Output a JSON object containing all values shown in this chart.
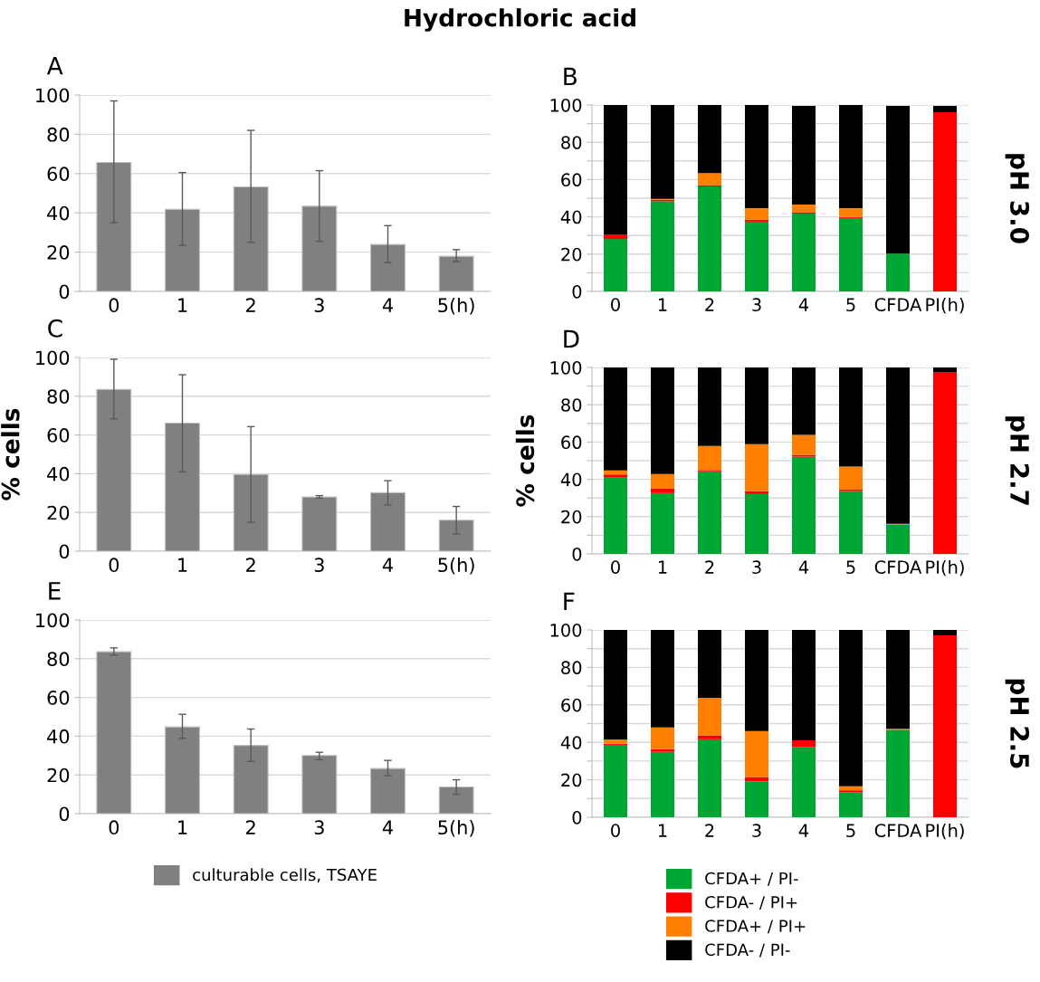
{
  "chart_data": [
    {
      "type": "bar",
      "title": "A",
      "annotations": [
        "Hydrochloric acid"
      ],
      "categories": [
        "0",
        "1",
        "2",
        "3",
        "4",
        "5(h)"
      ],
      "ylim": [
        0,
        100
      ],
      "yticks": [
        0,
        20,
        40,
        60,
        80,
        100
      ],
      "grid": "y",
      "legend": "bottom",
      "series": [
        {
          "name": "culturable cells, TSAYE",
          "color": "#808080",
          "values": [
            65.7,
            41.8,
            53.2,
            43.4,
            23.9,
            17.9
          ],
          "errors": [
            [
              35,
              97
            ],
            [
              23.5,
              60.5
            ],
            [
              25,
              82
            ],
            [
              25.5,
              61.5
            ],
            [
              14.7,
              33.5
            ],
            [
              15.3,
              21.3
            ]
          ]
        }
      ]
    },
    {
      "type": "bar",
      "title": "B",
      "y2label": "pH 3.0",
      "stacked": true,
      "categories": [
        "0",
        "1",
        "2",
        "3",
        "4",
        "5",
        "CFDA",
        "PI(h)"
      ],
      "ylim": [
        0,
        100
      ],
      "yticks": [
        0,
        {
          "value": 10,
          "label": null
        },
        20,
        {
          "value": 30,
          "label": null
        },
        40,
        {
          "value": 50,
          "label": null
        },
        60,
        {
          "value": 70,
          "label": null
        },
        80,
        {
          "value": 90,
          "label": null
        },
        100
      ],
      "grid": "y",
      "series": [
        {
          "color": "#00a633",
          "values": [
            28.1,
            48.4,
            56.3,
            37.4,
            41.7,
            39.4,
            20.3,
            0
          ]
        },
        {
          "color": "#ff0000",
          "values": [
            2.4,
            0.8,
            0.7,
            1,
            0.8,
            0.5,
            0,
            96.1
          ]
        },
        {
          "color": "#ff8000",
          "values": [
            0,
            0.4,
            6.5,
            6.2,
            4.1,
            4.7,
            0,
            0
          ]
        },
        {
          "color": "#000000",
          "values": [
            69.5,
            50.4,
            36.5,
            55.4,
            52.9,
            55.4,
            79.2,
            3.4
          ]
        }
      ]
    },
    {
      "type": "bar",
      "title": "C",
      "ylabel": "% cells",
      "categories": [
        "0",
        "1",
        "2",
        "3",
        "4",
        "5(h)"
      ],
      "ylim": [
        0,
        100
      ],
      "yticks": [
        0,
        20,
        40,
        60,
        80,
        100
      ],
      "grid": "y",
      "series": [
        {
          "color": "#808080",
          "values": [
            83.5,
            66.1,
            39.6,
            28,
            30.2,
            16
          ],
          "errors": [
            [
              68.3,
              99.1
            ],
            [
              41,
              91.1
            ],
            [
              14.9,
              64.3
            ],
            [
              27.4,
              28.7
            ],
            [
              23.9,
              36.4
            ],
            [
              8.9,
              23.1
            ]
          ]
        }
      ]
    },
    {
      "type": "bar",
      "title": "D",
      "ylabel": "% cells",
      "y2label": "pH 2.7",
      "stacked": true,
      "categories": [
        "0",
        "1",
        "2",
        "3",
        "4",
        "5",
        "CFDA",
        "PI(h)"
      ],
      "ylim": [
        0,
        100
      ],
      "yticks": [
        0,
        {
          "value": 10,
          "label": null
        },
        20,
        {
          "value": 30,
          "label": null
        },
        40,
        {
          "value": 50,
          "label": null
        },
        60,
        {
          "value": 70,
          "label": null
        },
        80,
        {
          "value": 90,
          "label": null
        },
        100
      ],
      "grid": "y",
      "series": [
        {
          "color": "#00a633",
          "values": [
            40.9,
            32.6,
            44.3,
            32.1,
            52.1,
            33.7,
            15.6,
            0
          ]
        },
        {
          "color": "#ff0000",
          "values": [
            1.7,
            2.4,
            0.7,
            1.6,
            0.9,
            0.8,
            0,
            97.4
          ]
        },
        {
          "color": "#ff8000",
          "values": [
            2.2,
            7.9,
            12.9,
            25.1,
            10.8,
            12.3,
            0.5,
            0
          ]
        },
        {
          "color": "#000000",
          "values": [
            55.2,
            57.1,
            42.1,
            41.2,
            36.2,
            53.2,
            83.9,
            2.6
          ]
        }
      ]
    },
    {
      "type": "bar",
      "title": "E",
      "categories": [
        "0",
        "1",
        "2",
        "3",
        "4",
        "5(h)"
      ],
      "ylim": [
        0,
        100
      ],
      "yticks": [
        0,
        20,
        40,
        60,
        80,
        100
      ],
      "grid": "y",
      "series": [
        {
          "color": "#808080",
          "values": [
            83.6,
            44.8,
            35.2,
            30,
            23.3,
            13.8
          ],
          "errors": [
            [
              81.9,
              85.6
            ],
            [
              38.9,
              51.3
            ],
            [
              27,
              43.7
            ],
            [
              27.8,
              31.7
            ],
            [
              19.6,
              27.5
            ],
            [
              10,
              17.5
            ]
          ]
        }
      ]
    },
    {
      "type": "bar",
      "title": "F",
      "y2label": "pH 2.5",
      "stacked": true,
      "legend": "bottom",
      "categories": [
        "0",
        "1",
        "2",
        "3",
        "4",
        "5",
        "CFDA",
        "PI(h)"
      ],
      "ylim": [
        0,
        100
      ],
      "yticks": [
        0,
        {
          "value": 10,
          "label": null
        },
        20,
        {
          "value": 30,
          "label": null
        },
        40,
        {
          "value": 50,
          "label": null
        },
        60,
        {
          "value": 70,
          "label": null
        },
        80,
        {
          "value": 90,
          "label": null
        },
        100
      ],
      "grid": "y",
      "series": [
        {
          "name": "CFDA+ / PI-",
          "color": "#00a633",
          "values": [
            38.7,
            34.9,
            41.6,
            19.1,
            37.4,
            13.2,
            46.7,
            0
          ]
        },
        {
          "name": "CFDA- / PI+",
          "color": "#ff0000",
          "values": [
            0.6,
            1.5,
            2.1,
            2.4,
            3.7,
            1.2,
            0,
            97.1
          ]
        },
        {
          "name": "CFDA+ / PI+",
          "color": "#ff8000",
          "values": [
            2.3,
            11.5,
            20.1,
            24.5,
            0,
            2.2,
            0.5,
            0
          ]
        },
        {
          "name": "CFDA- / PI-",
          "color": "#000000",
          "values": [
            58.4,
            52.1,
            36.2,
            54,
            58.9,
            83.4,
            52.8,
            2.9
          ]
        }
      ]
    }
  ]
}
